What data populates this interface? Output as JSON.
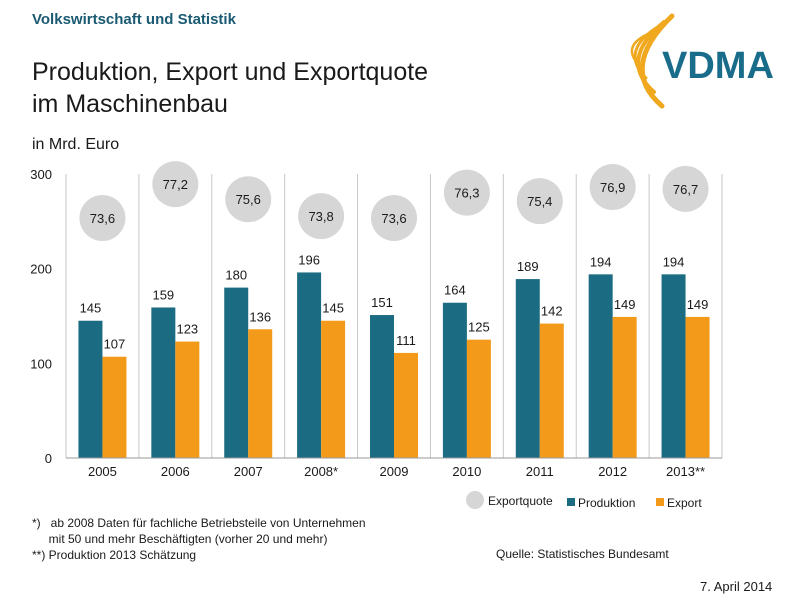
{
  "header": {
    "section": "Volkswirtschaft und Statistik",
    "title_line1": "Produktion, Export und Exportquote",
    "title_line2": "im Maschinenbau",
    "unit": "in Mrd. Euro",
    "logo_text": "VDMA"
  },
  "colors": {
    "produktion": "#1b6b82",
    "export": "#f39a1b",
    "exportquote": "#d6d6d6",
    "accent": "#1a5a73",
    "logo_arc": "#f0a81e"
  },
  "chart_data": {
    "type": "bar",
    "categories": [
      "2005",
      "2006",
      "2007",
      "2008*",
      "2009",
      "2010",
      "2011",
      "2012",
      "2013**"
    ],
    "series": [
      {
        "name": "Produktion",
        "values": [
          145,
          159,
          180,
          196,
          151,
          164,
          189,
          194,
          194
        ]
      },
      {
        "name": "Export",
        "values": [
          107,
          123,
          136,
          145,
          111,
          125,
          142,
          149,
          149
        ]
      }
    ],
    "exportquote": {
      "name": "Exportquote",
      "values": [
        "73,6",
        "77,2",
        "75,6",
        "73,8",
        "73,6",
        "76,3",
        "75,4",
        "76,9",
        "76,7"
      ]
    },
    "ylim": [
      0,
      300
    ],
    "yticks": [
      0,
      100,
      200,
      300
    ],
    "ylabel": "in Mrd. Euro",
    "legend": [
      "Exportquote",
      "Produktion",
      "Export"
    ]
  },
  "footnotes": {
    "line1": "*)   ab 2008 Daten für fachliche Betriebsteile von Unternehmen",
    "line2": "     mit 50 und mehr Beschäftigten (vorher 20 und mehr)",
    "line3": "**) Produktion 2013 Schätzung"
  },
  "source": "Quelle: Statistisches Bundesamt",
  "date": "7. April 2014"
}
